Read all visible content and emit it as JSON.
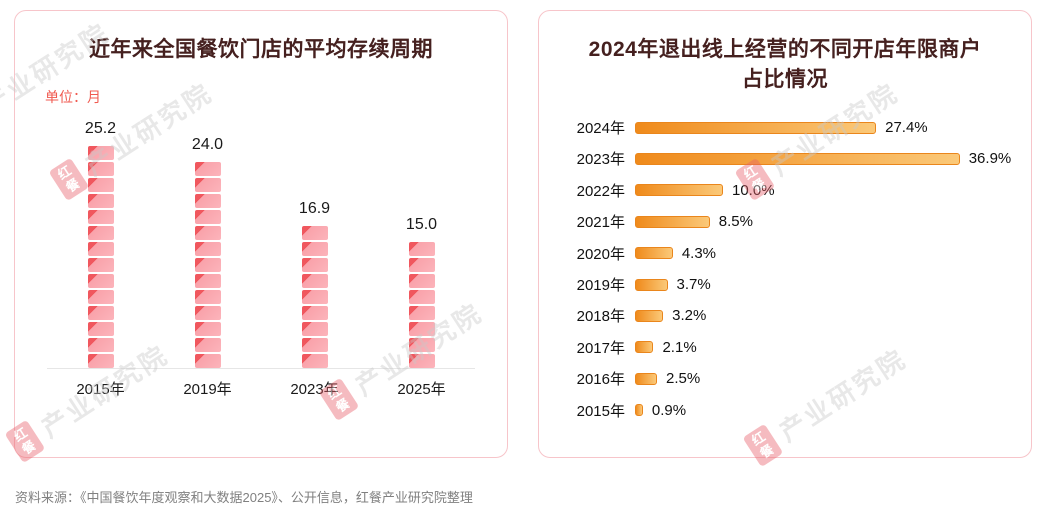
{
  "page": {
    "source_note": "资料来源：《中国餐饮年度观察和大数据2025》、公开信息，红餐产业研究院整理",
    "watermark": {
      "logo": "红餐",
      "text": "产业研究院"
    }
  },
  "chart_data": [
    {
      "type": "bar",
      "orientation": "vertical",
      "bar_style": "stacked-3d-blocks",
      "title": "近年来全国餐饮门店的平均存续周期",
      "unit_label": "单位：月",
      "categories": [
        "2015年",
        "2019年",
        "2023年",
        "2025年"
      ],
      "values": [
        25.2,
        24.0,
        16.9,
        15.0
      ],
      "value_labels": [
        "25.2",
        "24.0",
        "16.9",
        "15.0"
      ],
      "ylabel": "月",
      "ylim": [
        0,
        28
      ],
      "grid": false,
      "colors": {
        "block_top": "#F0575E",
        "block_face": "#F9A2AA",
        "block_face_light": "#FCB4BB"
      }
    },
    {
      "type": "bar",
      "orientation": "horizontal",
      "title": "2024年退出线上经营的不同开店年限商户占比情况",
      "categories": [
        "2024年",
        "2023年",
        "2022年",
        "2021年",
        "2020年",
        "2019年",
        "2018年",
        "2017年",
        "2016年",
        "2015年"
      ],
      "values": [
        27.4,
        36.9,
        10.0,
        8.5,
        4.3,
        3.7,
        3.2,
        2.1,
        2.5,
        0.9
      ],
      "value_labels": [
        "27.4%",
        "36.9%",
        "10.0%",
        "8.5%",
        "4.3%",
        "3.7%",
        "3.2%",
        "2.1%",
        "2.5%",
        "0.9%"
      ],
      "xlim": [
        0,
        40
      ],
      "grid": false,
      "colors": {
        "bar_start": "#EF8A1B",
        "bar_end": "#FBC979"
      }
    }
  ]
}
